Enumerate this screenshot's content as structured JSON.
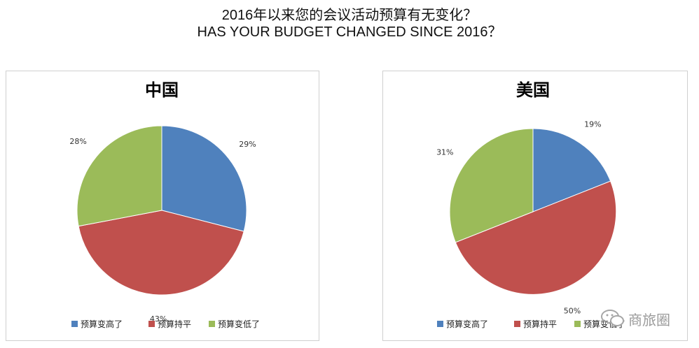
{
  "header": {
    "title_cn": "2016年以来您的会议活动预算有无变化？",
    "title_en": "HAS YOUR BUDGET CHANGED SINCE 2016？"
  },
  "legend_labels": [
    "预算变高了",
    "预算持平",
    "预算变低了"
  ],
  "colors": {
    "up": "#4F81BD",
    "flat": "#C0504D",
    "down": "#9BBB59"
  },
  "chart_data": [
    {
      "type": "pie",
      "title": "中国",
      "categories": [
        "预算变高了",
        "预算持平",
        "预算变低了"
      ],
      "values": [
        29,
        43,
        28
      ],
      "value_labels": [
        "29%",
        "43%",
        "28%"
      ],
      "legend": "bottom"
    },
    {
      "type": "pie",
      "title": "美国",
      "categories": [
        "预算变高了",
        "预算持平",
        "预算变低了"
      ],
      "values": [
        19,
        50,
        31
      ],
      "value_labels": [
        "19%",
        "50%",
        "31%"
      ],
      "legend": "bottom"
    }
  ],
  "watermark": {
    "text": "商旅圈",
    "icon": "wechat-bubble-icon"
  }
}
